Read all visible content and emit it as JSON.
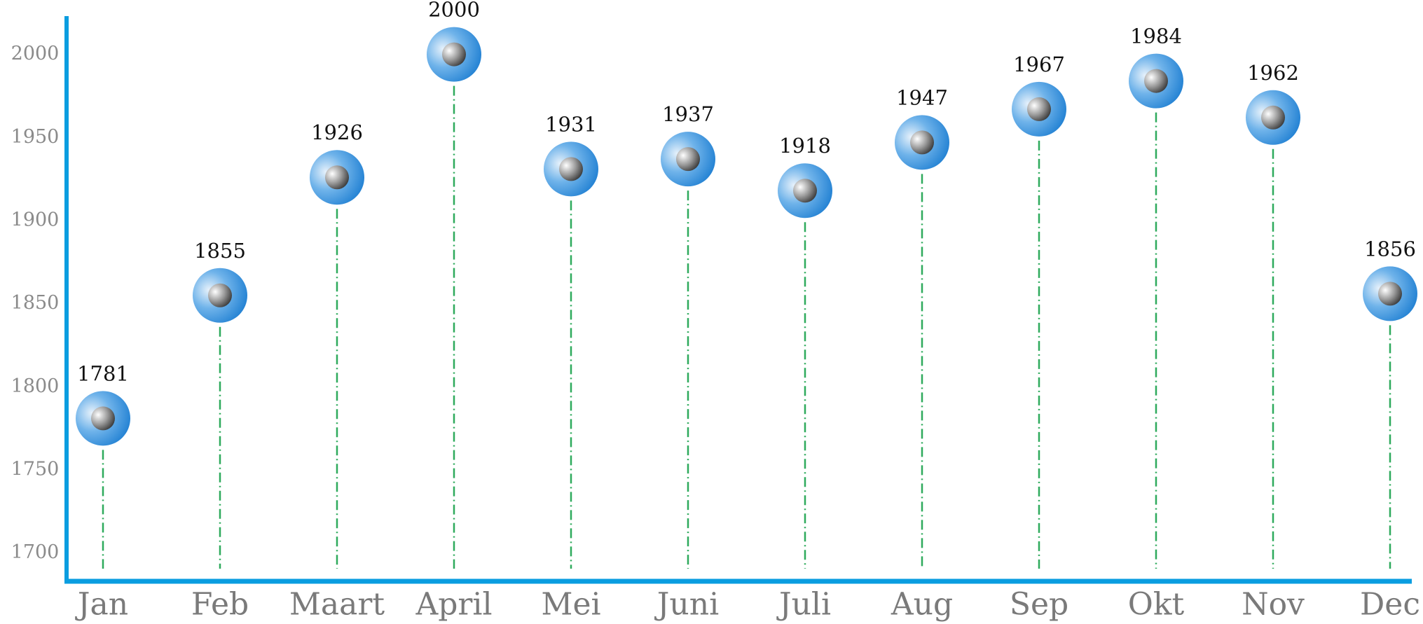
{
  "chart_data": {
    "type": "lollipop",
    "categories": [
      "Jan",
      "Feb",
      "Maart",
      "April",
      "Mei",
      "Juni",
      "Juli",
      "Aug",
      "Sep",
      "Okt",
      "Nov",
      "Dec"
    ],
    "values": [
      1781,
      1855,
      1926,
      2000,
      1931,
      1937,
      1918,
      1947,
      1967,
      1984,
      1962,
      1856
    ],
    "color": "#2a8fdc",
    "stem_color": "#2eaa5c",
    "axis_color": "#0a9de0",
    "ylim": [
      1683,
      2023
    ],
    "yticks": [
      1700,
      1750,
      1800,
      1850,
      1900,
      1950,
      2000
    ]
  }
}
